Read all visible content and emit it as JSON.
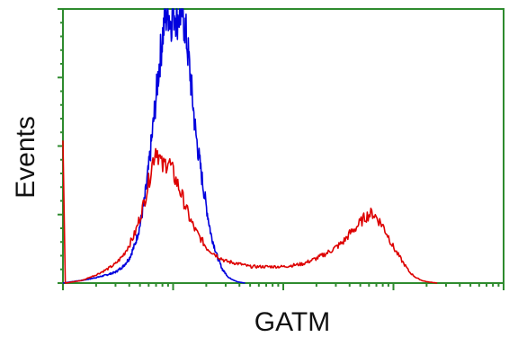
{
  "chart_data": {
    "type": "line",
    "title": "",
    "xlabel": "GATM",
    "ylabel": "Events",
    "xscale": "log",
    "xlim": [
      1,
      10000
    ],
    "ylim": [
      0,
      100
    ],
    "grid": false,
    "legend": "none",
    "frame_color": "#2e8b2e",
    "series": [
      {
        "color": "#0000dd",
        "points": [
          [
            1.0,
            0
          ],
          [
            1.2,
            0.5
          ],
          [
            1.5,
            1
          ],
          [
            2.0,
            2
          ],
          [
            2.5,
            3
          ],
          [
            3.0,
            4
          ],
          [
            3.5,
            6
          ],
          [
            4.0,
            9
          ],
          [
            4.5,
            14
          ],
          [
            5.0,
            21
          ],
          [
            5.5,
            30
          ],
          [
            6.0,
            42
          ],
          [
            6.5,
            55
          ],
          [
            7.0,
            68
          ],
          [
            7.5,
            80
          ],
          [
            8.0,
            90
          ],
          [
            8.5,
            97
          ],
          [
            9.0,
            100
          ],
          [
            9.5,
            95
          ],
          [
            10.0,
            100
          ],
          [
            11.0,
            97
          ],
          [
            12.0,
            100
          ],
          [
            13.0,
            92
          ],
          [
            14.0,
            80
          ],
          [
            15.0,
            67
          ],
          [
            16.0,
            55
          ],
          [
            18.0,
            40
          ],
          [
            20.0,
            28
          ],
          [
            22.0,
            18
          ],
          [
            25.0,
            10
          ],
          [
            28.0,
            5
          ],
          [
            32.0,
            2
          ],
          [
            38.0,
            0.5
          ],
          [
            45.0,
            0
          ]
        ]
      },
      {
        "color": "#dd0000",
        "points": [
          [
            1.0,
            52
          ],
          [
            1.05,
            0
          ],
          [
            1.5,
            1
          ],
          [
            2.0,
            3
          ],
          [
            2.5,
            5
          ],
          [
            3.0,
            7
          ],
          [
            3.5,
            10
          ],
          [
            4.0,
            14
          ],
          [
            4.5,
            18
          ],
          [
            5.0,
            24
          ],
          [
            5.5,
            30
          ],
          [
            6.0,
            37
          ],
          [
            6.5,
            44
          ],
          [
            7.0,
            50
          ],
          [
            7.5,
            46
          ],
          [
            8.0,
            42
          ],
          [
            9.0,
            45
          ],
          [
            10.0,
            40
          ],
          [
            11.0,
            36
          ],
          [
            12.0,
            32
          ],
          [
            13.0,
            28
          ],
          [
            14.0,
            24
          ],
          [
            16.0,
            19
          ],
          [
            18.0,
            16
          ],
          [
            20.0,
            13
          ],
          [
            25.0,
            10
          ],
          [
            30.0,
            8
          ],
          [
            40.0,
            7
          ],
          [
            50.0,
            6
          ],
          [
            70.0,
            6
          ],
          [
            100.0,
            6
          ],
          [
            150.0,
            7
          ],
          [
            200.0,
            9
          ],
          [
            250.0,
            11
          ],
          [
            300.0,
            13
          ],
          [
            350.0,
            15
          ],
          [
            400.0,
            18
          ],
          [
            450.0,
            20
          ],
          [
            500.0,
            22
          ],
          [
            550.0,
            24
          ],
          [
            600.0,
            25
          ],
          [
            650.0,
            25.5
          ],
          [
            700.0,
            24
          ],
          [
            800.0,
            21
          ],
          [
            900.0,
            17
          ],
          [
            1000.0,
            13
          ],
          [
            1200.0,
            8
          ],
          [
            1400.0,
            4
          ],
          [
            1600.0,
            2
          ],
          [
            1800.0,
            1
          ],
          [
            2000.0,
            0.5
          ],
          [
            2500.0,
            0
          ]
        ]
      }
    ]
  }
}
